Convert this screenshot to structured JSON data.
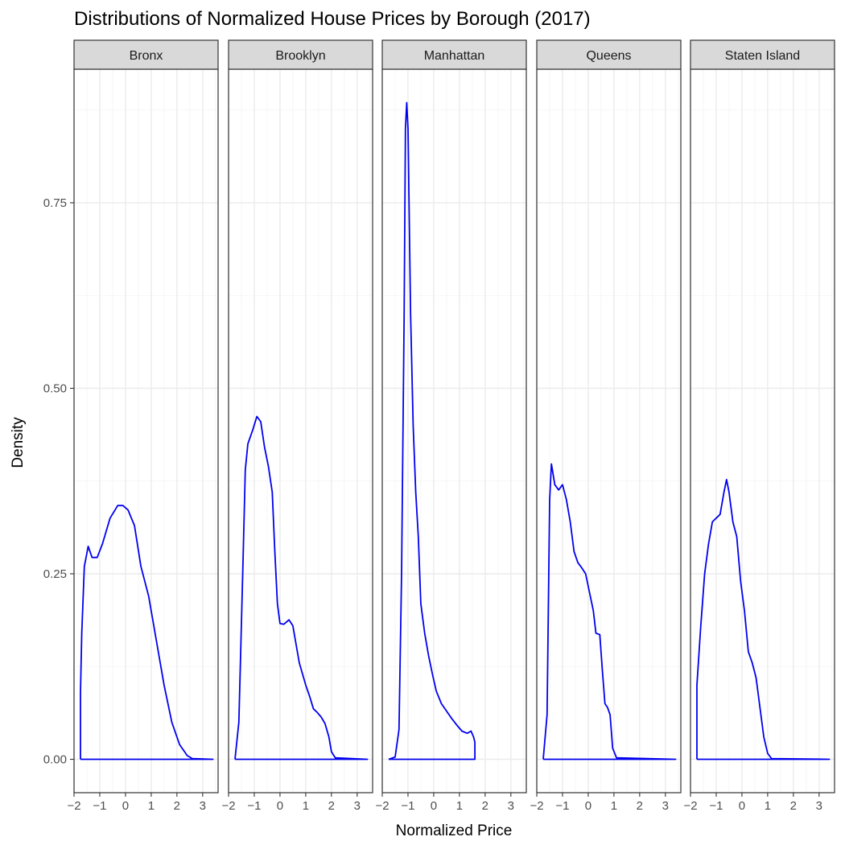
{
  "chart_data": {
    "type": "line",
    "title": "Distributions of Normalized House Prices by Borough (2017)",
    "xlabel": "Normalized Price",
    "ylabel": "Density",
    "xlim": [
      -2.0,
      3.6
    ],
    "ylim": [
      -0.045,
      0.93
    ],
    "x_ticks": [
      -2,
      -1,
      0,
      1,
      2,
      3
    ],
    "x_tick_labels": [
      "−2",
      "−1",
      "0",
      "1",
      "2",
      "3"
    ],
    "y_ticks": [
      0.0,
      0.25,
      0.5,
      0.75
    ],
    "y_tick_labels": [
      "0.00",
      "0.25",
      "0.50",
      "0.75"
    ],
    "grid": true,
    "line_color": "#0000ee",
    "facets": [
      {
        "name": "Bronx",
        "points": [
          [
            -1.75,
            0
          ],
          [
            -1.75,
            0.09
          ],
          [
            -1.7,
            0.17
          ],
          [
            -1.6,
            0.26
          ],
          [
            -1.45,
            0.287
          ],
          [
            -1.3,
            0.272
          ],
          [
            -1.1,
            0.272
          ],
          [
            -0.9,
            0.29
          ],
          [
            -0.6,
            0.325
          ],
          [
            -0.3,
            0.342
          ],
          [
            -0.1,
            0.342
          ],
          [
            0.1,
            0.336
          ],
          [
            0.35,
            0.315
          ],
          [
            0.6,
            0.26
          ],
          [
            0.9,
            0.22
          ],
          [
            1.2,
            0.16
          ],
          [
            1.5,
            0.1
          ],
          [
            1.8,
            0.05
          ],
          [
            2.1,
            0.02
          ],
          [
            2.4,
            0.005
          ],
          [
            2.6,
            0.001
          ],
          [
            3.4,
            0
          ],
          [
            -1.75,
            0
          ]
        ]
      },
      {
        "name": "Brooklyn",
        "points": [
          [
            -1.75,
            0
          ],
          [
            -1.6,
            0.05
          ],
          [
            -1.45,
            0.25
          ],
          [
            -1.35,
            0.39
          ],
          [
            -1.25,
            0.425
          ],
          [
            -1.05,
            0.445
          ],
          [
            -0.9,
            0.462
          ],
          [
            -0.75,
            0.455
          ],
          [
            -0.6,
            0.42
          ],
          [
            -0.45,
            0.395
          ],
          [
            -0.3,
            0.36
          ],
          [
            -0.2,
            0.28
          ],
          [
            -0.1,
            0.21
          ],
          [
            0.0,
            0.183
          ],
          [
            0.15,
            0.182
          ],
          [
            0.35,
            0.188
          ],
          [
            0.5,
            0.18
          ],
          [
            0.6,
            0.16
          ],
          [
            0.75,
            0.13
          ],
          [
            1.0,
            0.1
          ],
          [
            1.15,
            0.085
          ],
          [
            1.3,
            0.068
          ],
          [
            1.45,
            0.063
          ],
          [
            1.6,
            0.057
          ],
          [
            1.75,
            0.048
          ],
          [
            1.9,
            0.03
          ],
          [
            2.0,
            0.01
          ],
          [
            2.15,
            0.002
          ],
          [
            3.4,
            0
          ],
          [
            -1.75,
            0
          ]
        ]
      },
      {
        "name": "Manhattan",
        "points": [
          [
            -1.75,
            0
          ],
          [
            -1.5,
            0.003
          ],
          [
            -1.35,
            0.04
          ],
          [
            -1.25,
            0.25
          ],
          [
            -1.15,
            0.6
          ],
          [
            -1.1,
            0.85
          ],
          [
            -1.05,
            0.885
          ],
          [
            -1.0,
            0.85
          ],
          [
            -0.9,
            0.6
          ],
          [
            -0.8,
            0.45
          ],
          [
            -0.7,
            0.36
          ],
          [
            -0.6,
            0.3
          ],
          [
            -0.5,
            0.21
          ],
          [
            -0.35,
            0.17
          ],
          [
            -0.2,
            0.14
          ],
          [
            -0.05,
            0.115
          ],
          [
            0.1,
            0.092
          ],
          [
            0.3,
            0.075
          ],
          [
            0.5,
            0.065
          ],
          [
            0.7,
            0.055
          ],
          [
            0.9,
            0.046
          ],
          [
            1.1,
            0.038
          ],
          [
            1.3,
            0.035
          ],
          [
            1.45,
            0.038
          ],
          [
            1.55,
            0.03
          ],
          [
            1.6,
            0.023
          ],
          [
            1.6,
            0
          ],
          [
            -1.75,
            0
          ]
        ]
      },
      {
        "name": "Queens",
        "points": [
          [
            -1.75,
            0
          ],
          [
            -1.6,
            0.06
          ],
          [
            -1.5,
            0.35
          ],
          [
            -1.43,
            0.398
          ],
          [
            -1.3,
            0.37
          ],
          [
            -1.15,
            0.363
          ],
          [
            -1.0,
            0.37
          ],
          [
            -0.85,
            0.35
          ],
          [
            -0.7,
            0.32
          ],
          [
            -0.55,
            0.28
          ],
          [
            -0.4,
            0.265
          ],
          [
            -0.25,
            0.258
          ],
          [
            -0.1,
            0.25
          ],
          [
            0.05,
            0.225
          ],
          [
            0.2,
            0.2
          ],
          [
            0.3,
            0.17
          ],
          [
            0.45,
            0.168
          ],
          [
            0.55,
            0.12
          ],
          [
            0.65,
            0.075
          ],
          [
            0.75,
            0.07
          ],
          [
            0.85,
            0.06
          ],
          [
            0.95,
            0.015
          ],
          [
            1.1,
            0.002
          ],
          [
            3.4,
            0
          ],
          [
            -1.75,
            0
          ]
        ]
      },
      {
        "name": "Staten Island",
        "points": [
          [
            -1.75,
            0
          ],
          [
            -1.75,
            0.1
          ],
          [
            -1.6,
            0.18
          ],
          [
            -1.45,
            0.25
          ],
          [
            -1.3,
            0.29
          ],
          [
            -1.15,
            0.32
          ],
          [
            -1.0,
            0.325
          ],
          [
            -0.85,
            0.33
          ],
          [
            -0.7,
            0.36
          ],
          [
            -0.6,
            0.377
          ],
          [
            -0.5,
            0.36
          ],
          [
            -0.35,
            0.32
          ],
          [
            -0.2,
            0.3
          ],
          [
            -0.05,
            0.24
          ],
          [
            0.1,
            0.2
          ],
          [
            0.25,
            0.145
          ],
          [
            0.4,
            0.13
          ],
          [
            0.55,
            0.11
          ],
          [
            0.7,
            0.07
          ],
          [
            0.85,
            0.03
          ],
          [
            1.0,
            0.008
          ],
          [
            1.15,
            0.001
          ],
          [
            3.4,
            0
          ],
          [
            -1.75,
            0
          ]
        ]
      }
    ]
  }
}
